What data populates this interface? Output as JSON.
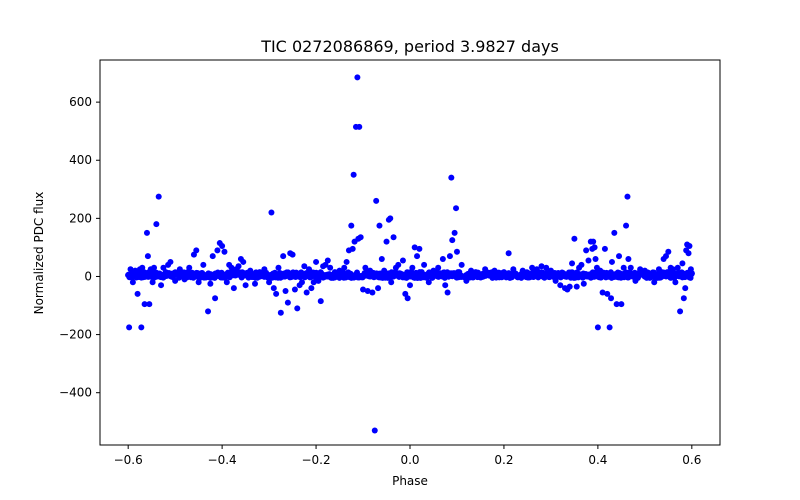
{
  "chart_data": {
    "type": "scatter",
    "title": "TIC 0272086869, period 3.9827 days",
    "xlabel": "Phase",
    "ylabel": "Normalized PDC flux",
    "xlim": [
      -0.66,
      0.66
    ],
    "ylim": [
      -580,
      745
    ],
    "xticks": [
      -0.6,
      -0.4,
      -0.2,
      0.0,
      0.2,
      0.4,
      0.6
    ],
    "xtick_labels": [
      "−0.6",
      "−0.4",
      "−0.2",
      "0.0",
      "0.2",
      "0.4",
      "0.6"
    ],
    "yticks": [
      -400,
      -200,
      0,
      200,
      400,
      600
    ],
    "ytick_labels": [
      "−400",
      "−200",
      "0",
      "200",
      "400",
      "600"
    ],
    "grid": false,
    "marker_color": "#0000ff",
    "band": {
      "x_range": [
        -0.6,
        0.6
      ],
      "y_center": 5,
      "y_halfwidth": 10
    },
    "series": [
      {
        "points": [
          [
            -0.6,
            5
          ],
          [
            -0.598,
            -175
          ],
          [
            -0.595,
            25
          ],
          [
            -0.59,
            -20
          ],
          [
            -0.585,
            20
          ],
          [
            -0.58,
            -60
          ],
          [
            -0.575,
            25
          ],
          [
            -0.572,
            -175
          ],
          [
            -0.57,
            30
          ],
          [
            -0.565,
            -95
          ],
          [
            -0.56,
            150
          ],
          [
            -0.558,
            70
          ],
          [
            -0.555,
            -95
          ],
          [
            -0.552,
            25
          ],
          [
            -0.548,
            -20
          ],
          [
            -0.545,
            30
          ],
          [
            -0.54,
            180
          ],
          [
            -0.535,
            275
          ],
          [
            -0.53,
            -30
          ],
          [
            -0.525,
            30
          ],
          [
            -0.52,
            15
          ],
          [
            -0.515,
            40
          ],
          [
            -0.51,
            50
          ],
          [
            -0.5,
            -15
          ],
          [
            -0.49,
            25
          ],
          [
            -0.48,
            -10
          ],
          [
            -0.47,
            30
          ],
          [
            -0.46,
            75
          ],
          [
            -0.455,
            90
          ],
          [
            -0.45,
            -20
          ],
          [
            -0.44,
            40
          ],
          [
            -0.43,
            -120
          ],
          [
            -0.425,
            -25
          ],
          [
            -0.42,
            70
          ],
          [
            -0.415,
            -75
          ],
          [
            -0.41,
            90
          ],
          [
            -0.405,
            115
          ],
          [
            -0.4,
            105
          ],
          [
            -0.395,
            85
          ],
          [
            -0.39,
            -20
          ],
          [
            -0.385,
            40
          ],
          [
            -0.38,
            30
          ],
          [
            -0.375,
            -40
          ],
          [
            -0.37,
            25
          ],
          [
            -0.365,
            35
          ],
          [
            -0.36,
            60
          ],
          [
            -0.355,
            50
          ],
          [
            -0.35,
            -30
          ],
          [
            -0.34,
            20
          ],
          [
            -0.33,
            -25
          ],
          [
            -0.32,
            15
          ],
          [
            -0.31,
            25
          ],
          [
            -0.3,
            -20
          ],
          [
            -0.295,
            220
          ],
          [
            -0.29,
            -40
          ],
          [
            -0.285,
            -60
          ],
          [
            -0.28,
            30
          ],
          [
            -0.275,
            -125
          ],
          [
            -0.27,
            70
          ],
          [
            -0.265,
            -50
          ],
          [
            -0.26,
            -90
          ],
          [
            -0.255,
            80
          ],
          [
            -0.25,
            75
          ],
          [
            -0.245,
            -45
          ],
          [
            -0.24,
            -110
          ],
          [
            -0.235,
            -30
          ],
          [
            -0.23,
            -20
          ],
          [
            -0.225,
            35
          ],
          [
            -0.22,
            -55
          ],
          [
            -0.215,
            25
          ],
          [
            -0.21,
            -40
          ],
          [
            -0.205,
            -20
          ],
          [
            -0.2,
            50
          ],
          [
            -0.195,
            -15
          ],
          [
            -0.19,
            -85
          ],
          [
            -0.185,
            35
          ],
          [
            -0.18,
            40
          ],
          [
            -0.175,
            55
          ],
          [
            -0.17,
            30
          ],
          [
            -0.16,
            15
          ],
          [
            -0.15,
            20
          ],
          [
            -0.14,
            30
          ],
          [
            -0.135,
            50
          ],
          [
            -0.13,
            90
          ],
          [
            -0.125,
            175
          ],
          [
            -0.122,
            95
          ],
          [
            -0.12,
            350
          ],
          [
            -0.118,
            120
          ],
          [
            -0.115,
            515
          ],
          [
            -0.112,
            685
          ],
          [
            -0.11,
            130
          ],
          [
            -0.108,
            515
          ],
          [
            -0.105,
            135
          ],
          [
            -0.1,
            -45
          ],
          [
            -0.095,
            30
          ],
          [
            -0.09,
            -50
          ],
          [
            -0.085,
            20
          ],
          [
            -0.08,
            -55
          ],
          [
            -0.075,
            -530
          ],
          [
            -0.072,
            260
          ],
          [
            -0.068,
            -40
          ],
          [
            -0.065,
            175
          ],
          [
            -0.06,
            60
          ],
          [
            -0.055,
            20
          ],
          [
            -0.05,
            120
          ],
          [
            -0.045,
            195
          ],
          [
            -0.042,
            200
          ],
          [
            -0.04,
            -20
          ],
          [
            -0.035,
            135
          ],
          [
            -0.03,
            30
          ],
          [
            -0.025,
            40
          ],
          [
            -0.02,
            10
          ],
          [
            -0.015,
            55
          ],
          [
            -0.01,
            -60
          ],
          [
            -0.005,
            -75
          ],
          [
            0.0,
            -30
          ],
          [
            0.005,
            30
          ],
          [
            0.01,
            100
          ],
          [
            0.015,
            70
          ],
          [
            0.02,
            95
          ],
          [
            0.025,
            15
          ],
          [
            0.03,
            40
          ],
          [
            0.04,
            -20
          ],
          [
            0.05,
            20
          ],
          [
            0.06,
            30
          ],
          [
            0.07,
            60
          ],
          [
            0.075,
            -30
          ],
          [
            0.08,
            -55
          ],
          [
            0.085,
            70
          ],
          [
            0.088,
            340
          ],
          [
            0.09,
            125
          ],
          [
            0.095,
            150
          ],
          [
            0.098,
            235
          ],
          [
            0.1,
            85
          ],
          [
            0.105,
            15
          ],
          [
            0.11,
            40
          ],
          [
            0.12,
            -15
          ],
          [
            0.13,
            20
          ],
          [
            0.14,
            15
          ],
          [
            0.16,
            25
          ],
          [
            0.18,
            20
          ],
          [
            0.2,
            15
          ],
          [
            0.21,
            80
          ],
          [
            0.22,
            25
          ],
          [
            0.24,
            20
          ],
          [
            0.26,
            30
          ],
          [
            0.27,
            25
          ],
          [
            0.28,
            35
          ],
          [
            0.29,
            30
          ],
          [
            0.3,
            20
          ],
          [
            0.31,
            -15
          ],
          [
            0.32,
            -30
          ],
          [
            0.33,
            -40
          ],
          [
            0.335,
            -45
          ],
          [
            0.34,
            -35
          ],
          [
            0.345,
            45
          ],
          [
            0.35,
            130
          ],
          [
            0.355,
            -35
          ],
          [
            0.36,
            30
          ],
          [
            0.365,
            40
          ],
          [
            0.37,
            -25
          ],
          [
            0.375,
            90
          ],
          [
            0.38,
            55
          ],
          [
            0.385,
            120
          ],
          [
            0.388,
            95
          ],
          [
            0.39,
            120
          ],
          [
            0.393,
            100
          ],
          [
            0.395,
            60
          ],
          [
            0.398,
            30
          ],
          [
            0.4,
            -175
          ],
          [
            0.405,
            20
          ],
          [
            0.41,
            -55
          ],
          [
            0.415,
            95
          ],
          [
            0.42,
            -60
          ],
          [
            0.425,
            -175
          ],
          [
            0.428,
            -75
          ],
          [
            0.43,
            50
          ],
          [
            0.435,
            150
          ],
          [
            0.44,
            -95
          ],
          [
            0.445,
            70
          ],
          [
            0.45,
            -95
          ],
          [
            0.455,
            30
          ],
          [
            0.46,
            175
          ],
          [
            0.463,
            275
          ],
          [
            0.465,
            60
          ],
          [
            0.47,
            30
          ],
          [
            0.48,
            -15
          ],
          [
            0.49,
            25
          ],
          [
            0.5,
            20
          ],
          [
            0.51,
            10
          ],
          [
            0.52,
            -20
          ],
          [
            0.53,
            25
          ],
          [
            0.54,
            60
          ],
          [
            0.545,
            70
          ],
          [
            0.55,
            85
          ],
          [
            0.555,
            30
          ],
          [
            0.56,
            25
          ],
          [
            0.565,
            -20
          ],
          [
            0.57,
            30
          ],
          [
            0.575,
            -120
          ],
          [
            0.58,
            45
          ],
          [
            0.583,
            -75
          ],
          [
            0.586,
            -40
          ],
          [
            0.588,
            90
          ],
          [
            0.59,
            110
          ],
          [
            0.593,
            80
          ],
          [
            0.595,
            105
          ],
          [
            0.598,
            25
          ],
          [
            0.6,
            10
          ]
        ]
      }
    ]
  }
}
